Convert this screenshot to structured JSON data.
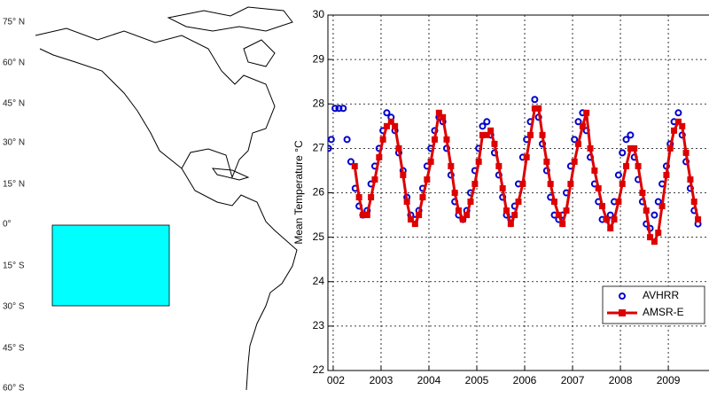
{
  "map": {
    "lat_labels": [
      "75° N",
      "60° N",
      "45° N",
      "30° N",
      "15° N",
      "0°",
      "15° S",
      "30° S",
      "45° S",
      "60° S"
    ]
  },
  "chart_data": {
    "type": "line",
    "ylabel": "Mean Temperature °C",
    "xlim": [
      2001.89,
      2009.85
    ],
    "xticks": [
      {
        "value": 2002,
        "label": "002"
      },
      2003,
      2004,
      2005,
      2006,
      2007,
      2008,
      2009
    ],
    "ylim": [
      22,
      30
    ],
    "yticks": [
      22,
      23,
      24,
      25,
      26,
      27,
      28,
      29,
      30
    ],
    "grid": true,
    "legend": "lower right",
    "series": [
      {
        "name": "AVHRR",
        "color": "#0000cc",
        "marker": "circle",
        "line": false,
        "x": [
          2001.9,
          2001.96,
          2002.04,
          2002.12,
          2002.21,
          2002.29,
          2002.37,
          2002.46,
          2002.54,
          2002.62,
          2002.71,
          2002.79,
          2002.87,
          2002.96,
          2003.04,
          2003.12,
          2003.21,
          2003.29,
          2003.37,
          2003.46,
          2003.54,
          2003.62,
          2003.71,
          2003.79,
          2003.87,
          2003.96,
          2004.04,
          2004.12,
          2004.21,
          2004.29,
          2004.37,
          2004.46,
          2004.54,
          2004.62,
          2004.71,
          2004.79,
          2004.87,
          2004.96,
          2005.04,
          2005.12,
          2005.21,
          2005.29,
          2005.37,
          2005.46,
          2005.54,
          2005.62,
          2005.71,
          2005.79,
          2005.87,
          2005.96,
          2006.04,
          2006.12,
          2006.21,
          2006.29,
          2006.37,
          2006.46,
          2006.54,
          2006.62,
          2006.71,
          2006.79,
          2006.87,
          2006.96,
          2007.04,
          2007.12,
          2007.21,
          2007.29,
          2007.37,
          2007.46,
          2007.54,
          2007.62,
          2007.71,
          2007.79,
          2007.87,
          2007.96,
          2008.04,
          2008.12,
          2008.21,
          2008.29,
          2008.37,
          2008.46,
          2008.54,
          2008.62,
          2008.71,
          2008.79,
          2008.87,
          2008.96,
          2009.04,
          2009.12,
          2009.21,
          2009.29,
          2009.37,
          2009.46,
          2009.54,
          2009.62
        ],
        "values": [
          27.0,
          27.2,
          27.9,
          27.9,
          27.9,
          27.2,
          26.7,
          26.1,
          25.7,
          25.5,
          25.6,
          26.2,
          26.6,
          27.0,
          27.4,
          27.8,
          27.7,
          27.4,
          26.9,
          26.5,
          25.9,
          25.5,
          25.4,
          25.6,
          26.1,
          26.6,
          27.0,
          27.4,
          27.7,
          27.6,
          27.0,
          26.4,
          25.8,
          25.5,
          25.4,
          25.6,
          26.0,
          26.5,
          27.0,
          27.5,
          27.6,
          27.3,
          26.9,
          26.4,
          25.9,
          25.5,
          25.4,
          25.7,
          26.2,
          26.8,
          27.2,
          27.6,
          28.1,
          27.7,
          27.1,
          26.5,
          25.9,
          25.5,
          25.4,
          25.5,
          26.0,
          26.6,
          27.2,
          27.6,
          27.8,
          27.4,
          26.8,
          26.2,
          25.8,
          25.4,
          25.4,
          25.5,
          25.8,
          26.4,
          26.9,
          27.2,
          27.3,
          26.8,
          26.3,
          25.8,
          25.3,
          25.2,
          25.5,
          25.8,
          26.2,
          26.6,
          27.1,
          27.6,
          27.8,
          27.3,
          26.7,
          26.1,
          25.6,
          25.3
        ]
      },
      {
        "name": "AMSR-E",
        "color": "#dd0000",
        "marker": "square",
        "line": true,
        "x": [
          2002.45,
          2002.54,
          2002.62,
          2002.71,
          2002.79,
          2002.87,
          2002.96,
          2003.04,
          2003.12,
          2003.21,
          2003.29,
          2003.37,
          2003.46,
          2003.54,
          2003.62,
          2003.71,
          2003.79,
          2003.87,
          2003.96,
          2004.04,
          2004.12,
          2004.21,
          2004.29,
          2004.37,
          2004.46,
          2004.54,
          2004.62,
          2004.71,
          2004.79,
          2004.87,
          2004.96,
          2005.04,
          2005.12,
          2005.21,
          2005.29,
          2005.37,
          2005.46,
          2005.54,
          2005.62,
          2005.71,
          2005.79,
          2005.87,
          2005.96,
          2006.04,
          2006.12,
          2006.21,
          2006.29,
          2006.37,
          2006.46,
          2006.54,
          2006.62,
          2006.71,
          2006.79,
          2006.87,
          2006.96,
          2007.04,
          2007.12,
          2007.21,
          2007.29,
          2007.37,
          2007.46,
          2007.54,
          2007.62,
          2007.71,
          2007.79,
          2007.87,
          2007.96,
          2008.04,
          2008.12,
          2008.21,
          2008.29,
          2008.37,
          2008.46,
          2008.54,
          2008.62,
          2008.71,
          2008.79,
          2008.87,
          2008.96,
          2009.04,
          2009.12,
          2009.21,
          2009.29,
          2009.37,
          2009.46,
          2009.54,
          2009.62
        ],
        "values": [
          26.6,
          25.9,
          25.5,
          25.5,
          25.9,
          26.3,
          26.8,
          27.2,
          27.5,
          27.6,
          27.5,
          27.0,
          26.4,
          25.8,
          25.4,
          25.3,
          25.5,
          25.9,
          26.3,
          26.7,
          27.2,
          27.8,
          27.7,
          27.2,
          26.6,
          26.0,
          25.6,
          25.4,
          25.5,
          25.8,
          26.2,
          26.7,
          27.3,
          27.3,
          27.4,
          27.1,
          26.6,
          26.1,
          25.6,
          25.3,
          25.5,
          25.8,
          26.2,
          26.8,
          27.3,
          27.9,
          27.9,
          27.3,
          26.7,
          26.2,
          25.8,
          25.5,
          25.3,
          25.6,
          26.2,
          26.7,
          27.1,
          27.5,
          27.8,
          27.0,
          26.5,
          26.1,
          25.7,
          25.4,
          25.2,
          25.4,
          25.8,
          26.2,
          26.6,
          27.0,
          27.0,
          26.6,
          26.0,
          25.6,
          25.0,
          24.9,
          25.1,
          25.7,
          26.4,
          27.0,
          27.4,
          27.6,
          27.5,
          26.9,
          26.3,
          25.8,
          25.4
        ]
      }
    ]
  }
}
